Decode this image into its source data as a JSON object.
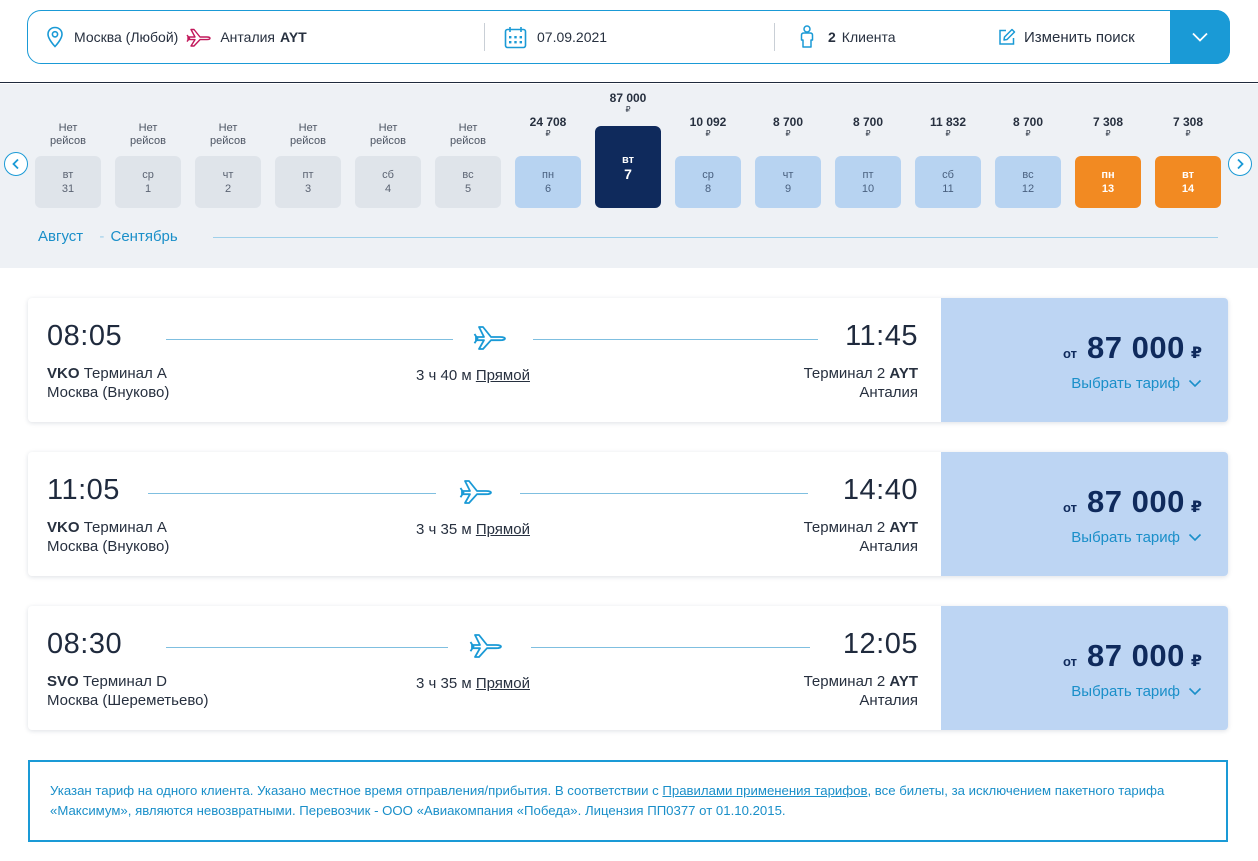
{
  "search": {
    "origin": "Москва (Любой)",
    "destination_city": "Анталия",
    "destination_code": "AYT",
    "date": "07.09.2021",
    "pax_count": "2",
    "pax_label": "Клиента",
    "change_label": "Изменить поиск"
  },
  "calendar": {
    "no_flights_line1": "Нет",
    "no_flights_line2": "рейсов",
    "currency": "₽",
    "months": [
      "Август",
      "Сентябрь"
    ],
    "days": [
      {
        "weekday": "вт",
        "day": "31",
        "price": "",
        "state": "none"
      },
      {
        "weekday": "ср",
        "day": "1",
        "price": "",
        "state": "none"
      },
      {
        "weekday": "чт",
        "day": "2",
        "price": "",
        "state": "none"
      },
      {
        "weekday": "пт",
        "day": "3",
        "price": "",
        "state": "none"
      },
      {
        "weekday": "сб",
        "day": "4",
        "price": "",
        "state": "none"
      },
      {
        "weekday": "вс",
        "day": "5",
        "price": "",
        "state": "none"
      },
      {
        "weekday": "пн",
        "day": "6",
        "price": "24 708",
        "state": "avail"
      },
      {
        "weekday": "вт",
        "day": "7",
        "price": "87 000",
        "state": "selected"
      },
      {
        "weekday": "ср",
        "day": "8",
        "price": "10 092",
        "state": "avail"
      },
      {
        "weekday": "чт",
        "day": "9",
        "price": "8 700",
        "state": "avail"
      },
      {
        "weekday": "пт",
        "day": "10",
        "price": "8 700",
        "state": "avail"
      },
      {
        "weekday": "сб",
        "day": "11",
        "price": "11 832",
        "state": "avail"
      },
      {
        "weekday": "вс",
        "day": "12",
        "price": "8 700",
        "state": "avail"
      },
      {
        "weekday": "пн",
        "day": "13",
        "price": "7 308",
        "state": "cheapest"
      },
      {
        "weekday": "вт",
        "day": "14",
        "price": "7 308",
        "state": "cheapest"
      }
    ]
  },
  "flights": [
    {
      "dep_time": "08:05",
      "arr_time": "11:45",
      "dep_code": "VKO",
      "dep_terminal": "Терминал A",
      "dep_airport": "Москва (Внуково)",
      "arr_terminal": "Терминал 2",
      "arr_code": "AYT",
      "arr_city": "Анталия",
      "duration": "3 ч 40 м",
      "type": "Прямой",
      "price_from": "от",
      "price": "87 000",
      "currency": "₽",
      "tariff_label": "Выбрать тариф"
    },
    {
      "dep_time": "11:05",
      "arr_time": "14:40",
      "dep_code": "VKO",
      "dep_terminal": "Терминал A",
      "dep_airport": "Москва (Внуково)",
      "arr_terminal": "Терминал 2",
      "arr_code": "AYT",
      "arr_city": "Анталия",
      "duration": "3 ч 35 м",
      "type": "Прямой",
      "price_from": "от",
      "price": "87 000",
      "currency": "₽",
      "tariff_label": "Выбрать тариф"
    },
    {
      "dep_time": "08:30",
      "arr_time": "12:05",
      "dep_code": "SVO",
      "dep_terminal": "Терминал D",
      "dep_airport": "Москва (Шереметьево)",
      "arr_terminal": "Терминал 2",
      "arr_code": "AYT",
      "arr_city": "Анталия",
      "duration": "3 ч 35 м",
      "type": "Прямой",
      "price_from": "от",
      "price": "87 000",
      "currency": "₽",
      "tariff_label": "Выбрать тариф"
    }
  ],
  "notice": {
    "text_before": "Указан тариф на одного клиента. Указано местное время отправления/прибытия. В соответствии с ",
    "link": "Правилами применения тарифов",
    "text_after": ", все билеты, за исключением пакетного тарифа «Максимум», являются невозвратными. Перевозчик - ООО «Авиакомпания «Победа». Лицензия ПП0377 от 01.10.2015."
  },
  "colors": {
    "accent": "#1a9ad6",
    "navy": "#0f2a5c",
    "cheapest": "#f28a22",
    "available": "#b7d3f1",
    "price_bg": "#bdd5f3",
    "destination_icon": "#c2185b"
  }
}
